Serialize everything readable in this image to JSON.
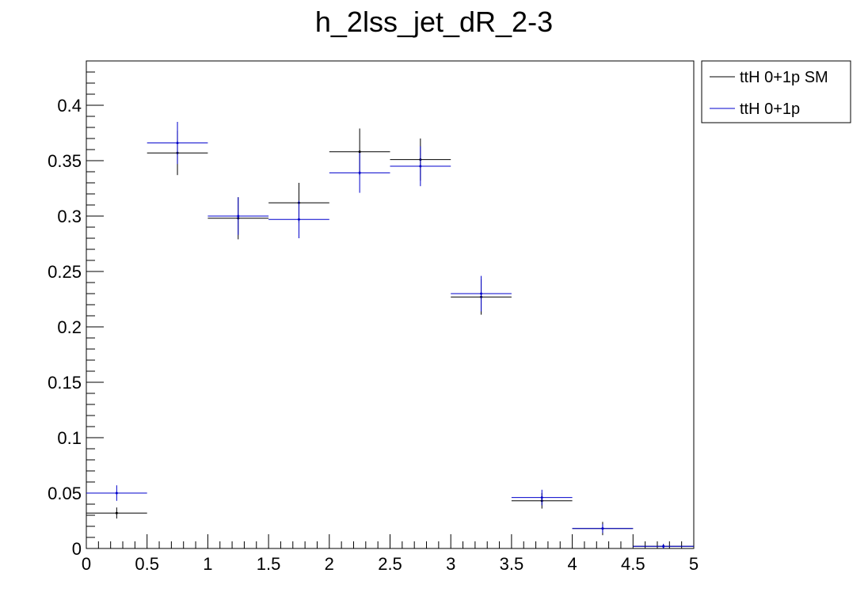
{
  "chart_data": {
    "type": "scatter",
    "title": "h_2lss_jet_dR_2-3",
    "xlabel": "",
    "ylabel": "",
    "xlim": [
      0,
      5
    ],
    "ylim": [
      0,
      0.44
    ],
    "grid": false,
    "legend_position": "top-right, outside plot",
    "x_ticks": [
      0,
      0.5,
      1,
      1.5,
      2,
      2.5,
      3,
      3.5,
      4,
      4.5,
      5
    ],
    "x_tick_labels": [
      "0",
      "0.5",
      "1",
      "1.5",
      "2",
      "2.5",
      "3",
      "3.5",
      "4",
      "4.5",
      "5"
    ],
    "y_ticks": [
      0,
      0.05,
      0.1,
      0.15,
      0.2,
      0.25,
      0.3,
      0.35,
      0.4
    ],
    "y_tick_labels": [
      "0",
      "0.05",
      "0.1",
      "0.15",
      "0.2",
      "0.25",
      "0.3",
      "0.35",
      "0.4"
    ],
    "bin_edges": [
      0,
      0.5,
      1,
      1.5,
      2,
      2.5,
      3,
      3.5,
      4,
      4.5,
      5
    ],
    "series": [
      {
        "name": "ttH 0+1p SM",
        "color": "#000000",
        "values": [
          0.032,
          0.357,
          0.298,
          0.312,
          0.358,
          0.351,
          0.227,
          0.043,
          0.018,
          0.002
        ],
        "errors": [
          0.005,
          0.02,
          0.019,
          0.018,
          0.021,
          0.019,
          0.016,
          0.007,
          0.006,
          0.002
        ]
      },
      {
        "name": "ttH 0+1p",
        "color": "#0000cc",
        "values": [
          0.05,
          0.366,
          0.3,
          0.297,
          0.339,
          0.345,
          0.23,
          0.046,
          0.018,
          0.002
        ],
        "errors": [
          0.007,
          0.019,
          0.017,
          0.017,
          0.018,
          0.018,
          0.016,
          0.007,
          0.004,
          0.002
        ]
      }
    ]
  }
}
